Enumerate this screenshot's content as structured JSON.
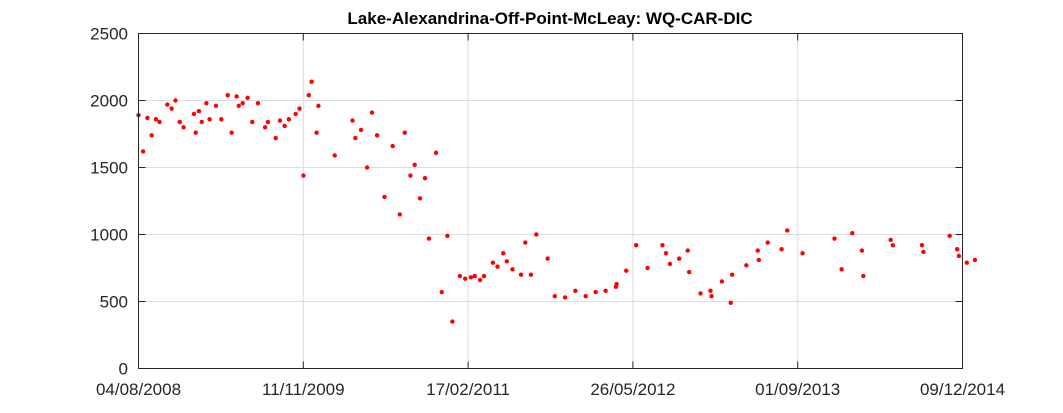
{
  "chart_data": {
    "type": "scatter",
    "title": "Lake-Alexandrina-Off-Point-McLeay: WQ-CAR-DIC",
    "xlabel": "",
    "ylabel": "",
    "x_ticks": [
      "04/08/2008",
      "11/11/2009",
      "17/02/2011",
      "26/05/2012",
      "01/09/2013",
      "09/12/2014"
    ],
    "x_range_days": [
      0,
      2318
    ],
    "y_ticks": [
      0,
      500,
      1000,
      1500,
      2000,
      2500
    ],
    "ylim": [
      0,
      2500
    ],
    "grid": true,
    "marker_color": "#ff0000",
    "series": [
      {
        "name": "WQ-CAR-DIC",
        "points": [
          [
            0,
            1890
          ],
          [
            13,
            1620
          ],
          [
            25,
            1870
          ],
          [
            37,
            1740
          ],
          [
            49,
            1860
          ],
          [
            59,
            1840
          ],
          [
            81,
            1970
          ],
          [
            93,
            1940
          ],
          [
            104,
            2000
          ],
          [
            116,
            1840
          ],
          [
            127,
            1800
          ],
          [
            156,
            1900
          ],
          [
            161,
            1760
          ],
          [
            170,
            1920
          ],
          [
            178,
            1840
          ],
          [
            191,
            1980
          ],
          [
            200,
            1860
          ],
          [
            218,
            1960
          ],
          [
            233,
            1860
          ],
          [
            251,
            2040
          ],
          [
            262,
            1760
          ],
          [
            276,
            2030
          ],
          [
            282,
            1960
          ],
          [
            293,
            1980
          ],
          [
            307,
            2020
          ],
          [
            320,
            1840
          ],
          [
            336,
            1980
          ],
          [
            356,
            1800
          ],
          [
            364,
            1840
          ],
          [
            386,
            1720
          ],
          [
            398,
            1850
          ],
          [
            411,
            1810
          ],
          [
            423,
            1860
          ],
          [
            442,
            1900
          ],
          [
            453,
            1940
          ],
          [
            464,
            1440
          ],
          [
            479,
            2040
          ],
          [
            487,
            2140
          ],
          [
            501,
            1760
          ],
          [
            506,
            1960
          ],
          [
            552,
            1590
          ],
          [
            602,
            1850
          ],
          [
            610,
            1720
          ],
          [
            626,
            1780
          ],
          [
            643,
            1500
          ],
          [
            657,
            1910
          ],
          [
            671,
            1740
          ],
          [
            692,
            1280
          ],
          [
            715,
            1660
          ],
          [
            735,
            1150
          ],
          [
            749,
            1760
          ],
          [
            765,
            1440
          ],
          [
            777,
            1520
          ],
          [
            792,
            1270
          ],
          [
            806,
            1420
          ],
          [
            817,
            970
          ],
          [
            837,
            1610
          ],
          [
            853,
            570
          ],
          [
            869,
            990
          ],
          [
            883,
            350
          ],
          [
            904,
            690
          ],
          [
            919,
            670
          ],
          [
            935,
            680
          ],
          [
            946,
            690
          ],
          [
            961,
            660
          ],
          [
            972,
            690
          ],
          [
            997,
            790
          ],
          [
            1010,
            760
          ],
          [
            1026,
            860
          ],
          [
            1036,
            800
          ],
          [
            1052,
            740
          ],
          [
            1076,
            700
          ],
          [
            1088,
            940
          ],
          [
            1104,
            700
          ],
          [
            1119,
            1000
          ],
          [
            1151,
            820
          ],
          [
            1171,
            540
          ],
          [
            1200,
            530
          ],
          [
            1229,
            580
          ],
          [
            1258,
            540
          ],
          [
            1286,
            570
          ],
          [
            1314,
            580
          ],
          [
            1343,
            610
          ],
          [
            1345,
            630
          ],
          [
            1372,
            730
          ],
          [
            1400,
            920
          ],
          [
            1432,
            750
          ],
          [
            1474,
            920
          ],
          [
            1484,
            860
          ],
          [
            1495,
            780
          ],
          [
            1521,
            820
          ],
          [
            1545,
            880
          ],
          [
            1549,
            720
          ],
          [
            1581,
            560
          ],
          [
            1609,
            580
          ],
          [
            1612,
            540
          ],
          [
            1641,
            650
          ],
          [
            1666,
            490
          ],
          [
            1670,
            700
          ],
          [
            1710,
            770
          ],
          [
            1742,
            880
          ],
          [
            1745,
            810
          ],
          [
            1770,
            940
          ],
          [
            1809,
            890
          ],
          [
            1825,
            1030
          ],
          [
            1868,
            860
          ],
          [
            1958,
            970
          ],
          [
            1978,
            740
          ],
          [
            2008,
            1010
          ],
          [
            2035,
            880
          ],
          [
            2039,
            690
          ],
          [
            2116,
            960
          ],
          [
            2122,
            920
          ],
          [
            2204,
            920
          ],
          [
            2208,
            870
          ],
          [
            2282,
            990
          ],
          [
            2303,
            890
          ],
          [
            2308,
            840
          ],
          [
            2330,
            790
          ],
          [
            2353,
            810
          ]
        ]
      }
    ]
  }
}
